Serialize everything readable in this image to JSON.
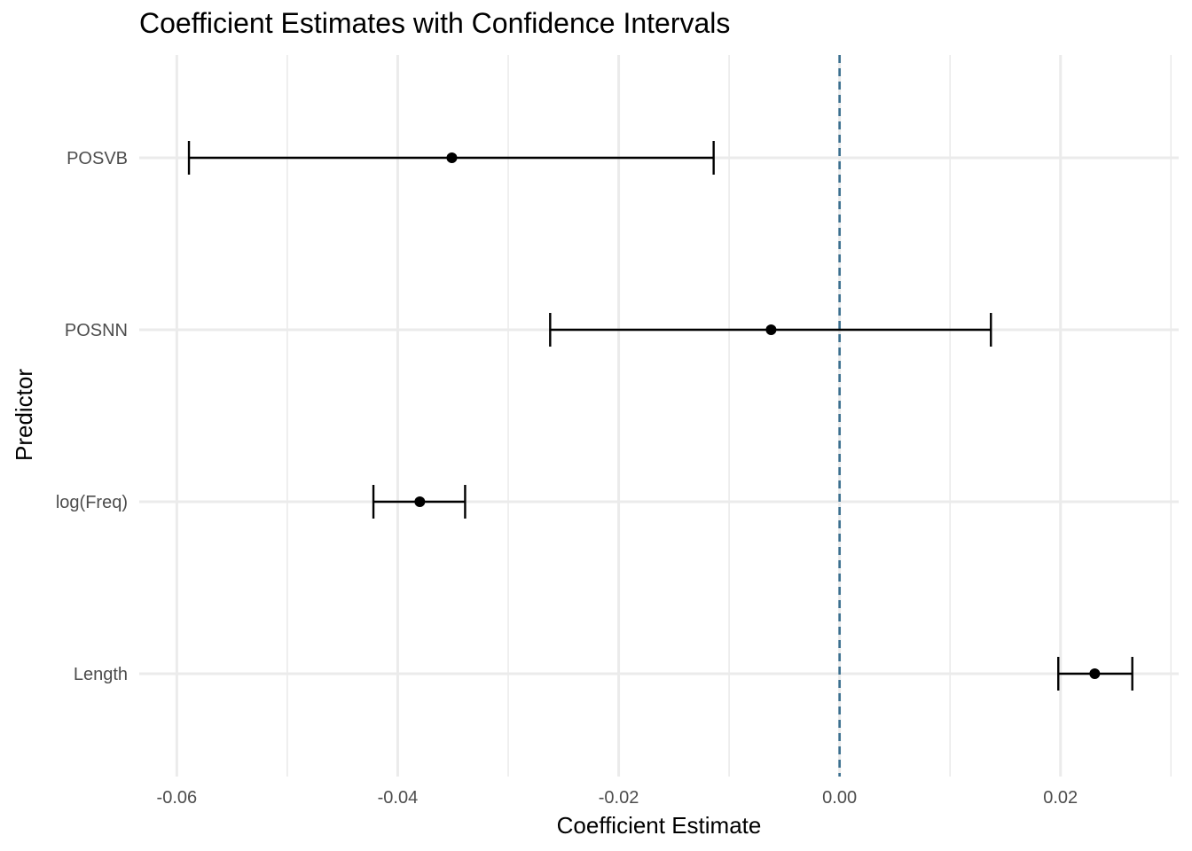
{
  "chart_data": {
    "type": "errorbar",
    "title": "Coefficient Estimates with Confidence Intervals",
    "xlabel": "Coefficient Estimate",
    "ylabel": "Predictor",
    "xlim": [
      -0.0634,
      0.0307
    ],
    "x_ticks": [
      -0.06,
      -0.04,
      -0.02,
      0.0,
      0.02
    ],
    "x_tick_labels": [
      "-0.06",
      "-0.04",
      "-0.02",
      "0.00",
      "0.02"
    ],
    "categories": [
      "POSVB",
      "POSNN",
      "log(Freq)",
      "Length"
    ],
    "estimates": [
      -0.0351,
      -0.0062,
      -0.038,
      0.0231
    ],
    "ci_lower": [
      -0.0589,
      -0.0262,
      -0.0422,
      0.0198
    ],
    "ci_upper": [
      -0.0114,
      0.0137,
      -0.0339,
      0.0265
    ],
    "reference_line": {
      "x": 0,
      "style": "dashed",
      "color": "#3a6f8f"
    },
    "colors": {
      "points": "#000000",
      "grid": "#ebebeb",
      "reference": "#3a6f8f"
    },
    "grid": true,
    "legend": "none"
  }
}
